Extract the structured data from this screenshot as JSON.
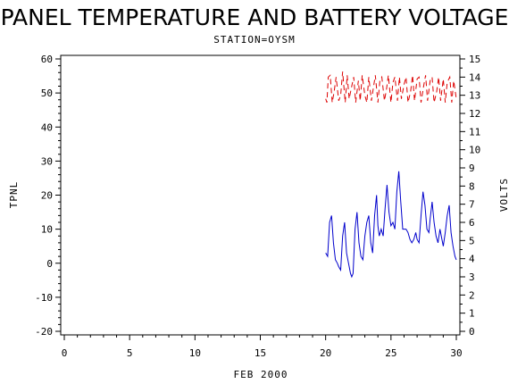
{
  "chart_data": {
    "type": "line",
    "title": "PANEL TEMPERATURE AND BATTERY VOLTAGE",
    "subtitle": "STATION=OYSM",
    "xlabel": "FEB 2000",
    "ylabel": "TPNL",
    "y2label": "VOLTS",
    "xlim": [
      0,
      30
    ],
    "ylim": [
      -20,
      60
    ],
    "y2lim": [
      0,
      15
    ],
    "xticks": [
      0,
      5,
      10,
      15,
      20,
      25,
      30
    ],
    "yticks": [
      -20,
      -10,
      0,
      10,
      20,
      30,
      40,
      50,
      60
    ],
    "y2ticks": [
      0,
      1,
      2,
      3,
      4,
      5,
      6,
      7,
      8,
      9,
      10,
      11,
      12,
      13,
      14,
      15
    ],
    "grid": false,
    "colors": {
      "tpnl": "#0000cc",
      "volts": "#dd0000"
    },
    "series": [
      {
        "axis": "left",
        "color": "#0000cc",
        "line": "solid",
        "x": [
          20.0,
          20.15,
          20.3,
          20.45,
          20.6,
          20.75,
          20.9,
          21.0,
          21.15,
          21.3,
          21.45,
          21.6,
          21.75,
          21.9,
          22.0,
          22.1,
          22.25,
          22.4,
          22.55,
          22.7,
          22.85,
          23.0,
          23.15,
          23.3,
          23.45,
          23.6,
          23.75,
          23.9,
          24.0,
          24.1,
          24.25,
          24.4,
          24.55,
          24.7,
          24.85,
          25.0,
          25.15,
          25.3,
          25.45,
          25.6,
          25.75,
          25.9,
          26.0,
          26.15,
          26.3,
          26.45,
          26.6,
          26.75,
          26.9,
          27.0,
          27.15,
          27.3,
          27.45,
          27.6,
          27.75,
          27.9,
          28.0,
          28.15,
          28.3,
          28.45,
          28.6,
          28.75,
          28.9,
          29.0,
          29.15,
          29.3,
          29.45,
          29.6,
          29.75,
          29.9,
          30.0
        ],
        "y": [
          3,
          2,
          12,
          14,
          6,
          1,
          0,
          -1,
          -2,
          8,
          12,
          3,
          0,
          -3,
          -4,
          -3,
          10,
          15,
          6,
          2,
          1,
          8,
          12,
          14,
          6,
          3,
          14,
          20,
          11,
          8,
          10,
          8,
          16,
          23,
          15,
          11,
          12,
          10,
          21,
          27,
          18,
          10,
          10,
          10,
          9,
          7,
          6,
          7,
          9,
          7,
          6,
          14,
          21,
          17,
          10,
          9,
          13,
          18,
          12,
          8,
          6,
          10,
          7,
          5,
          9,
          14,
          17,
          9,
          5,
          2,
          1
        ]
      },
      {
        "axis": "right",
        "color": "#dd0000",
        "line": "dashed",
        "x": [
          20.0,
          20.1,
          20.2,
          20.35,
          20.5,
          20.65,
          20.8,
          21.0,
          21.15,
          21.3,
          21.5,
          21.65,
          21.8,
          22.0,
          22.15,
          22.3,
          22.5,
          22.65,
          22.8,
          23.0,
          23.15,
          23.3,
          23.5,
          23.65,
          23.8,
          24.0,
          24.15,
          24.3,
          24.5,
          24.65,
          24.8,
          25.0,
          25.15,
          25.3,
          25.5,
          25.65,
          25.8,
          26.0,
          26.15,
          26.3,
          26.5,
          26.65,
          26.8,
          27.0,
          27.15,
          27.3,
          27.5,
          27.65,
          27.8,
          28.0,
          28.15,
          28.3,
          28.5,
          28.65,
          28.8,
          29.0,
          29.15,
          29.3,
          29.5,
          29.65,
          29.8,
          30.0
        ],
        "y": [
          12.8,
          12.6,
          14.0,
          14.1,
          12.6,
          13.2,
          14.0,
          12.7,
          13.0,
          14.3,
          12.6,
          14.1,
          12.8,
          13.5,
          14.0,
          12.6,
          13.8,
          12.7,
          14.1,
          13.0,
          12.6,
          14.0,
          12.7,
          13.4,
          14.1,
          12.6,
          13.8,
          14.0,
          12.7,
          13.3,
          14.1,
          12.6,
          13.7,
          14.0,
          12.7,
          14.0,
          12.8,
          13.6,
          14.0,
          12.6,
          13.2,
          14.1,
          12.7,
          13.9,
          14.0,
          12.6,
          13.5,
          14.1,
          12.7,
          13.8,
          14.0,
          12.6,
          13.2,
          14.0,
          12.7,
          13.9,
          12.6,
          13.7,
          14.0,
          12.6,
          13.8,
          12.8
        ]
      }
    ]
  }
}
